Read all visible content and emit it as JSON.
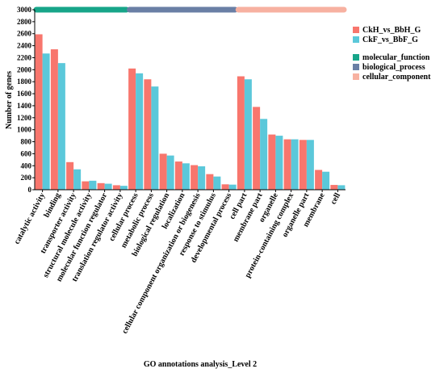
{
  "chart_data": {
    "type": "bar",
    "xlabel": "GO annotations analysis_Level 2",
    "ylabel": "Number of genes",
    "ylim": [
      0,
      3000
    ],
    "yticks": [
      0,
      200,
      400,
      600,
      800,
      1000,
      1200,
      1400,
      1600,
      1800,
      2000,
      2200,
      2400,
      2600,
      2800,
      3000
    ],
    "categories": [
      "catalytic activity",
      "binding",
      "transporter activity",
      "structural molecule activity",
      "molecular function regulator",
      "translation regulator activity",
      "cellular process",
      "metabolic process",
      "biological regulation",
      "localization",
      "cellular component organization or biogenesis",
      "response to stimulus",
      "developmental process",
      "cell part",
      "membrane part",
      "organelle",
      "protein-containing complex",
      "organelle part",
      "membrane",
      "cell"
    ],
    "series": [
      {
        "name": "CkH_vs_BbH_G",
        "color": "#F8766D",
        "values": [
          2590,
          2340,
          460,
          140,
          110,
          75,
          2020,
          1840,
          600,
          470,
          410,
          260,
          90,
          1890,
          1380,
          920,
          840,
          830,
          330,
          80
        ]
      },
      {
        "name": "CkF_vs_BbF_G",
        "color": "#5BC8DA",
        "values": [
          2270,
          2110,
          340,
          150,
          100,
          65,
          1940,
          1720,
          570,
          440,
          390,
          220,
          85,
          1840,
          1180,
          900,
          840,
          830,
          300,
          75
        ]
      }
    ],
    "groups": [
      {
        "name": "molecular_function",
        "color": "#17A589",
        "start": 0,
        "end": 5
      },
      {
        "name": "biological_process",
        "color": "#6A7FA5",
        "start": 6,
        "end": 12
      },
      {
        "name": "cellular_component",
        "color": "#F7B1A1",
        "start": 13,
        "end": 19
      }
    ],
    "legend_position": "right",
    "grid": false
  }
}
